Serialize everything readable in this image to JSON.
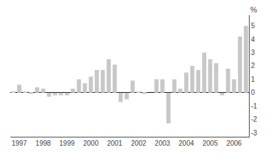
{
  "chart_data": {
    "type": "bar",
    "ylabel": "%",
    "categories": [
      null,
      "1997",
      null,
      null,
      null,
      "1998",
      null,
      null,
      null,
      "1999",
      null,
      null,
      null,
      "2000",
      null,
      null,
      null,
      "2001",
      null,
      null,
      null,
      "2002",
      null,
      null,
      null,
      "2003",
      null,
      null,
      null,
      "2004",
      null,
      null,
      null,
      "2005",
      null,
      null,
      null,
      "2006",
      null,
      null
    ],
    "values": [
      0.1,
      0.6,
      0.1,
      -0.1,
      0.4,
      0.3,
      -0.3,
      -0.2,
      -0.2,
      -0.2,
      0.3,
      1.0,
      0.7,
      1.2,
      1.7,
      1.7,
      2.5,
      2.1,
      -0.7,
      -0.5,
      0.9,
      0.1,
      -0.1,
      0.0,
      1.0,
      1.0,
      -2.3,
      1.0,
      0.3,
      1.5,
      2.0,
      1.7,
      3.0,
      2.5,
      2.2,
      -0.2,
      1.8,
      1.0,
      4.2,
      5.0
    ],
    "color": "#c8c8c8",
    "ylim": [
      -3.3,
      5.8
    ],
    "yticks": [
      -3,
      -2,
      -1,
      0,
      1,
      2,
      3,
      4,
      5
    ],
    "grid": false
  }
}
